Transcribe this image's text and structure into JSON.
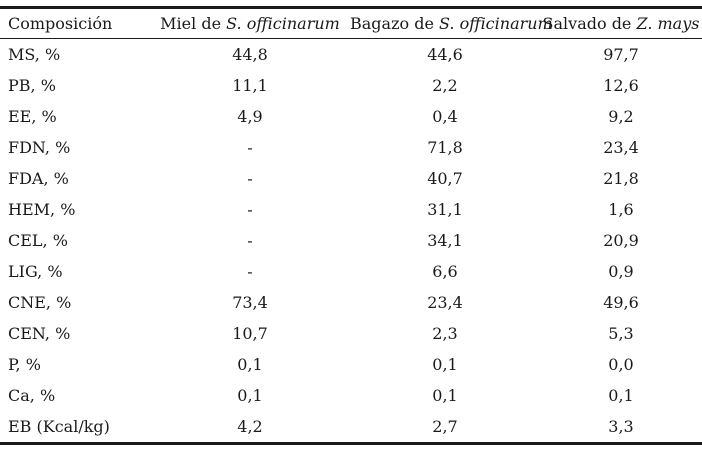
{
  "page": {
    "background": "#ffffff",
    "text_color": "#1a1a1a",
    "rule_color": "#1a1a1a"
  },
  "table": {
    "columns": [
      {
        "prefix": "Composición",
        "species": ""
      },
      {
        "prefix": "Miel de ",
        "species": "S. officinarum"
      },
      {
        "prefix": "Bagazo de ",
        "species": "S. officinarum"
      },
      {
        "prefix": "Salvado de ",
        "species": "Z. mays"
      }
    ],
    "rows": [
      {
        "label": "MS, %",
        "values": [
          "44,8",
          "44,6",
          "97,7"
        ]
      },
      {
        "label": "PB, %",
        "values": [
          "11,1",
          "2,2",
          "12,6"
        ]
      },
      {
        "label": "EE, %",
        "values": [
          "4,9",
          "0,4",
          "9,2"
        ]
      },
      {
        "label": "FDN, %",
        "values": [
          "-",
          "71,8",
          "23,4"
        ]
      },
      {
        "label": "FDA, %",
        "values": [
          "-",
          "40,7",
          "21,8"
        ]
      },
      {
        "label": "HEM, %",
        "values": [
          "-",
          "31,1",
          "1,6"
        ]
      },
      {
        "label": "CEL, %",
        "values": [
          "-",
          "34,1",
          "20,9"
        ]
      },
      {
        "label": "LIG, %",
        "values": [
          "-",
          "6,6",
          "0,9"
        ]
      },
      {
        "label": "CNE, %",
        "values": [
          "73,4",
          "23,4",
          "49,6"
        ]
      },
      {
        "label": "CEN, %",
        "values": [
          "10,7",
          "2,3",
          "5,3"
        ]
      },
      {
        "label": "P, %",
        "values": [
          "0,1",
          "0,1",
          "0,0"
        ]
      },
      {
        "label": "Ca, %",
        "values": [
          "0,1",
          "0,1",
          "0,1"
        ]
      },
      {
        "label": "EB (Kcal/kg)",
        "values": [
          "4,2",
          "2,7",
          "3,3"
        ]
      }
    ]
  },
  "chart_data": {
    "type": "table",
    "title": "",
    "columns": [
      "Composición",
      "Miel de S. officinarum",
      "Bagazo de S. officinarum",
      "Salvado de Z. mays"
    ],
    "rows": [
      [
        "MS, %",
        "44,8",
        "44,6",
        "97,7"
      ],
      [
        "PB, %",
        "11,1",
        "2,2",
        "12,6"
      ],
      [
        "EE, %",
        "4,9",
        "0,4",
        "9,2"
      ],
      [
        "FDN, %",
        "-",
        "71,8",
        "23,4"
      ],
      [
        "FDA, %",
        "-",
        "40,7",
        "21,8"
      ],
      [
        "HEM, %",
        "-",
        "31,1",
        "1,6"
      ],
      [
        "CEL, %",
        "-",
        "34,1",
        "20,9"
      ],
      [
        "LIG, %",
        "-",
        "6,6",
        "0,9"
      ],
      [
        "CNE, %",
        "73,4",
        "23,4",
        "49,6"
      ],
      [
        "CEN, %",
        "10,7",
        "2,3",
        "5,3"
      ],
      [
        "P, %",
        "0,1",
        "0,1",
        "0,0"
      ],
      [
        "Ca, %",
        "0,1",
        "0,1",
        "0,1"
      ],
      [
        "EB (Kcal/kg)",
        "4,2",
        "2,7",
        "3,3"
      ]
    ]
  }
}
